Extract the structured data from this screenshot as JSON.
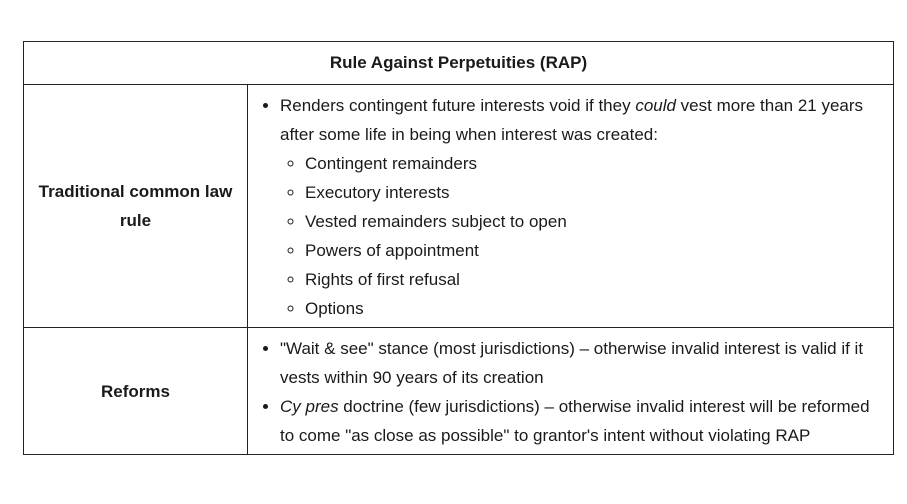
{
  "table": {
    "title": "Rule Against Perpetuities (RAP)",
    "rows": [
      {
        "label": "Traditional common law rule",
        "main_bullet": {
          "before": "Renders contingent future interests void if they ",
          "emphasis": "could",
          "after": " vest more than 21 years after some life in being when interest was created:"
        },
        "sub_items": [
          "Contingent remainders",
          "Executory interests",
          "Vested remainders subject to open",
          "Powers of appointment",
          "Rights of first refusal",
          "Options"
        ]
      },
      {
        "label": "Reforms",
        "bullets": [
          {
            "emphasis": "",
            "text": "\"Wait & see\" stance (most jurisdictions) – otherwise invalid interest is valid if it vests within 90 years of its creation"
          },
          {
            "emphasis": "Cy pres",
            "text": " doctrine (few jurisdictions) – otherwise invalid interest will be reformed to come \"as close as possible\" to grantor's intent without violating RAP"
          }
        ]
      }
    ]
  }
}
